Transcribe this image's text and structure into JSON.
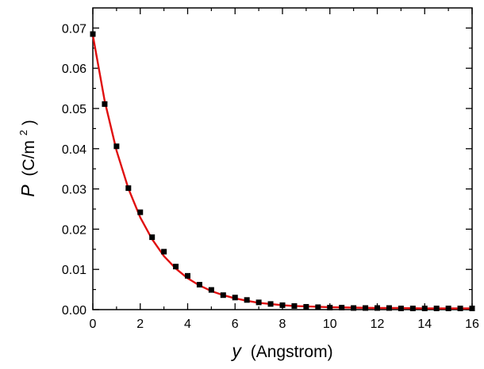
{
  "chart_data": {
    "type": "scatter",
    "title": "",
    "xlabel": {
      "symbol": "y",
      "unit": "(Angstrom)"
    },
    "ylabel": {
      "symbol": "P",
      "unit_prefix": "(C/m",
      "unit_superscript": "2",
      "unit_suffix": ")"
    },
    "xlim": [
      0,
      16
    ],
    "ylim": [
      0,
      0.075
    ],
    "x_ticks": [
      0,
      2,
      4,
      6,
      8,
      10,
      12,
      14,
      16
    ],
    "y_ticks": [
      0.0,
      0.01,
      0.02,
      0.03,
      0.04,
      0.05,
      0.06,
      0.07
    ],
    "x_tick_labels": [
      "0",
      "2",
      "4",
      "6",
      "8",
      "10",
      "12",
      "14",
      "16"
    ],
    "y_tick_labels": [
      "0.00",
      "0.01",
      "0.02",
      "0.03",
      "0.04",
      "0.05",
      "0.06",
      "0.07"
    ],
    "grid": false,
    "series": [
      {
        "kind": "markers",
        "color": "#000000",
        "marker": "square",
        "x": [
          0,
          0.5,
          1,
          1.5,
          2,
          2.5,
          3,
          3.5,
          4,
          4.5,
          5,
          5.5,
          6,
          6.5,
          7,
          7.5,
          8,
          8.5,
          9,
          9.5,
          10,
          10.5,
          11,
          11.5,
          12,
          12.5,
          13,
          13.5,
          14,
          14.5,
          15,
          15.5,
          16
        ],
        "y": [
          0.0685,
          0.0511,
          0.0406,
          0.0302,
          0.0242,
          0.018,
          0.0144,
          0.0107,
          0.0084,
          0.0062,
          0.0049,
          0.0036,
          0.003,
          0.0024,
          0.0018,
          0.0014,
          0.0011,
          0.0009,
          0.0007,
          0.0006,
          0.0005,
          0.0005,
          0.0004,
          0.0004,
          0.0004,
          0.0004,
          0.0003,
          0.0003,
          0.0003,
          0.0003,
          0.0003,
          0.0003,
          0.0003
        ]
      },
      {
        "kind": "line",
        "color": "#e01010",
        "x": [
          0,
          0.5,
          1,
          1.5,
          2,
          2.5,
          3,
          3.5,
          4,
          4.5,
          5,
          5.5,
          6,
          6.5,
          7,
          7.5,
          8,
          8.5,
          9,
          9.5,
          10,
          11,
          12,
          13,
          14,
          15,
          16
        ],
        "y": [
          0.0682,
          0.0519,
          0.0395,
          0.0301,
          0.0229,
          0.0175,
          0.0133,
          0.0102,
          0.0078,
          0.006,
          0.0046,
          0.0036,
          0.0028,
          0.0022,
          0.0017,
          0.0014,
          0.0011,
          0.0009,
          0.0008,
          0.0007,
          0.0006,
          0.0005,
          0.0004,
          0.0004,
          0.0003,
          0.0003,
          0.0003
        ]
      }
    ]
  }
}
